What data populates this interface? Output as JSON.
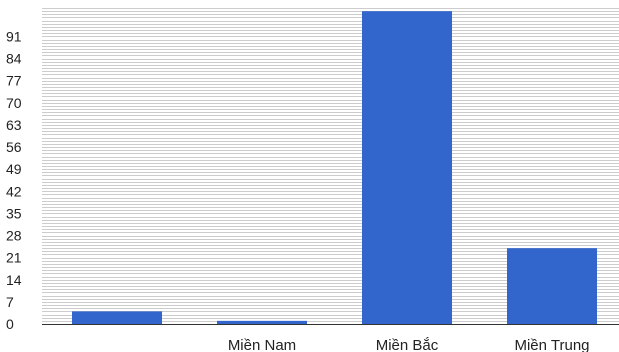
{
  "chart_data": {
    "type": "bar",
    "categories": [
      "",
      "Miền Nam",
      "Miền Bắc",
      "Miền Trung"
    ],
    "values": [
      4,
      1,
      99,
      24
    ],
    "ylim": [
      0,
      100
    ],
    "y_ticks": [
      0,
      7,
      14,
      21,
      28,
      35,
      42,
      49,
      56,
      63,
      70,
      77,
      84,
      91
    ],
    "y_tick_labels": [
      "0",
      "7",
      "14",
      "21",
      "28",
      "35",
      "42",
      "49",
      "56",
      "63",
      "70",
      "77",
      "84",
      "91"
    ],
    "title": "",
    "xlabel": "",
    "ylabel": "",
    "grid": true,
    "legend": "none",
    "colors": {
      "bar": "#3366cc",
      "grid": "#cccccc",
      "baseline": "#333333"
    }
  }
}
